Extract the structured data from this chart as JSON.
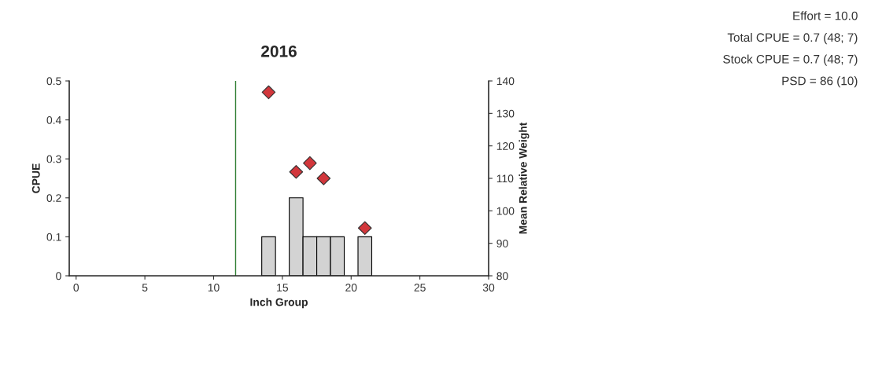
{
  "chart_data": {
    "type": "bar",
    "title": "2016",
    "xlabel": "Inch Group",
    "ylabel": "CPUE",
    "y2label": "Mean Relative Weight",
    "series": [
      {
        "color": "#d3d3d3",
        "x": [
          14,
          16,
          17,
          18,
          19,
          21
        ],
        "values": [
          0.1,
          0.2,
          0.1,
          0.1,
          0.1,
          0.1
        ]
      },
      {
        "type": "scatter",
        "axis": "y2",
        "marker": "diamond",
        "color": "#d2373c",
        "x": [
          14,
          16,
          17,
          18,
          21
        ],
        "values": [
          136.5,
          112,
          114.7,
          110,
          94.7
        ]
      }
    ],
    "xlim": [
      -0.5,
      30
    ],
    "xticks": [
      0,
      5,
      10,
      15,
      20,
      25,
      30
    ],
    "ylim": [
      0,
      0.5
    ],
    "yticks": [
      0,
      0.1,
      0.2,
      0.3,
      0.4,
      0.5
    ],
    "y2lim": [
      80,
      140
    ],
    "y2ticks": [
      80,
      90,
      100,
      110,
      120,
      130,
      140
    ],
    "ref_lines": [
      {
        "axis": "x",
        "value": 11.6,
        "color": "#2e7d32"
      }
    ],
    "grid": false,
    "legend": false,
    "annotations": [
      "Effort = 10.0",
      "Total CPUE = 0.7 (48; 7)",
      "Stock CPUE = 0.7 (48; 7)",
      "PSD = 86 (10)"
    ]
  }
}
